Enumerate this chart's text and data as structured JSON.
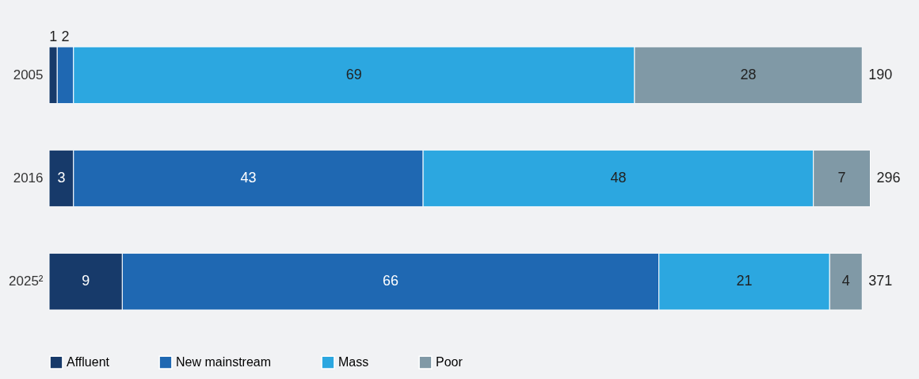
{
  "chart_data": {
    "type": "bar",
    "orientation": "horizontal",
    "stacked": true,
    "categories": [
      "2005",
      "2016",
      "2025²"
    ],
    "series": [
      {
        "name": "Affluent",
        "color": "#173a6a",
        "values": [
          1,
          3,
          9
        ]
      },
      {
        "name": "New mainstream",
        "color": "#1f68b2",
        "values": [
          2,
          43,
          66
        ]
      },
      {
        "name": "Mass",
        "color": "#2ca7e0",
        "values": [
          69,
          48,
          21
        ]
      },
      {
        "name": "Poor",
        "color": "#8099a6",
        "values": [
          28,
          7,
          4
        ]
      }
    ],
    "annotations": [
      "190",
      "296",
      "371"
    ],
    "data_labels": true,
    "legend": "bottom",
    "tick_labels": "y",
    "grid": false
  }
}
